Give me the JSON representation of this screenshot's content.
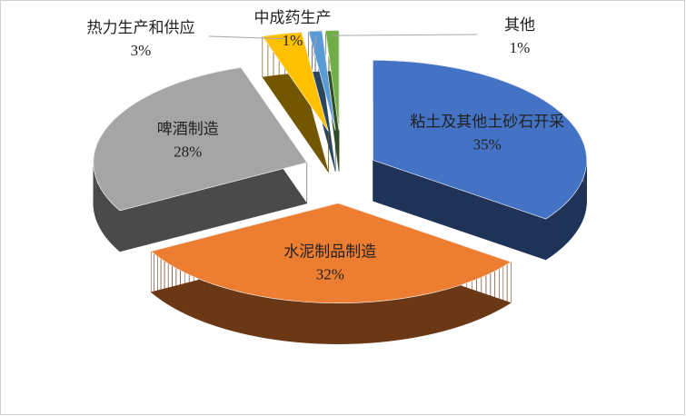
{
  "chart_data": {
    "type": "pie3d",
    "categories": [
      "粘土及其他土砂石开采",
      "水泥制品制造",
      "啤酒制造",
      "热力生产和供应",
      "中成药生产",
      "其他"
    ],
    "values": [
      35,
      32,
      28,
      3,
      1,
      1
    ],
    "value_labels": [
      "35%",
      "32%",
      "28%",
      "3%",
      "1%",
      "1%"
    ],
    "colors": [
      "#4472c4",
      "#ed7d31",
      "#a5a5a5",
      "#ffc000",
      "#5b9bd5",
      "#70ad47"
    ]
  }
}
